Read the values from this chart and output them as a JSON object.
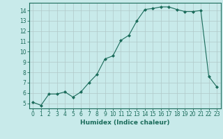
{
  "x": [
    0,
    1,
    2,
    3,
    4,
    5,
    6,
    7,
    8,
    9,
    10,
    11,
    12,
    13,
    14,
    15,
    16,
    17,
    18,
    19,
    20,
    21,
    22,
    23
  ],
  "y": [
    5.1,
    4.8,
    5.9,
    5.9,
    6.1,
    5.6,
    6.1,
    7.0,
    7.8,
    9.3,
    9.6,
    11.1,
    11.6,
    13.0,
    14.1,
    14.2,
    14.35,
    14.35,
    14.1,
    13.9,
    13.9,
    14.0,
    7.6,
    6.6
  ],
  "xlabel": "Humidex (Indice chaleur)",
  "ylabel": "",
  "xlim": [
    -0.5,
    23.5
  ],
  "ylim": [
    4.5,
    14.75
  ],
  "yticks": [
    5,
    6,
    7,
    8,
    9,
    10,
    11,
    12,
    13,
    14
  ],
  "xticks": [
    0,
    1,
    2,
    3,
    4,
    5,
    6,
    7,
    8,
    9,
    10,
    11,
    12,
    13,
    14,
    15,
    16,
    17,
    18,
    19,
    20,
    21,
    22,
    23
  ],
  "line_color": "#1a6b5a",
  "marker": "D",
  "marker_size": 2.0,
  "bg_color": "#c8eaea",
  "grid_color": "#b0c8c8",
  "label_fontsize": 6.5,
  "tick_fontsize": 5.5
}
